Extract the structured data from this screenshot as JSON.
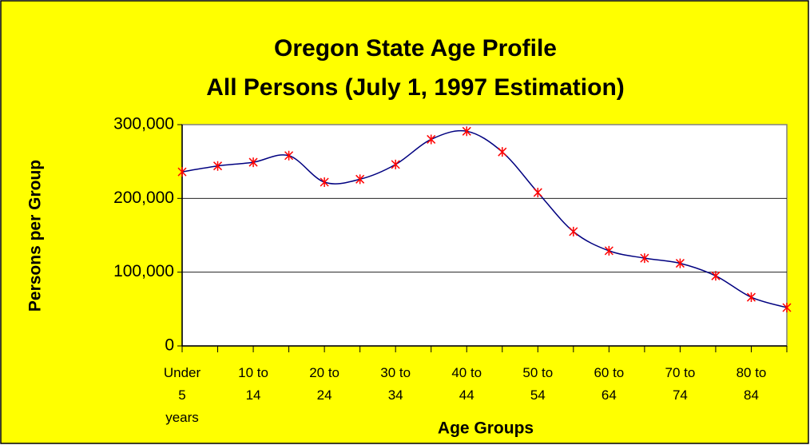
{
  "chart_data": {
    "type": "line",
    "title": "Oregon State Age Profile",
    "subtitle": "All Persons (July 1, 1997 Estimation)",
    "x_label": "Age Groups",
    "y_label": "Persons per Group",
    "categories": [
      "Under 5 years",
      null,
      "10 to 14",
      null,
      "20 to 24",
      null,
      "30 to 34",
      null,
      "40 to 44",
      null,
      "50 to 54",
      null,
      "60 to 64",
      null,
      "70 to 74",
      null,
      "80 to 84",
      null
    ],
    "series": [
      {
        "name": "All Persons",
        "color": "#000080",
        "marker_color": "#ff0000",
        "values": [
          236000,
          244000,
          249000,
          258000,
          222000,
          226000,
          246000,
          280000,
          291000,
          263000,
          208000,
          155000,
          129000,
          119000,
          112000,
          95000,
          66000,
          52000
        ]
      }
    ],
    "ylim": [
      0,
      300000
    ],
    "yticks": [
      0,
      {
        "value": 100000,
        "label": "100,000"
      },
      {
        "value": 200000,
        "label": "200,000"
      },
      {
        "value": 300000,
        "label": "300,000"
      }
    ],
    "grid": true,
    "smooth": true,
    "background": "#ffff00"
  }
}
